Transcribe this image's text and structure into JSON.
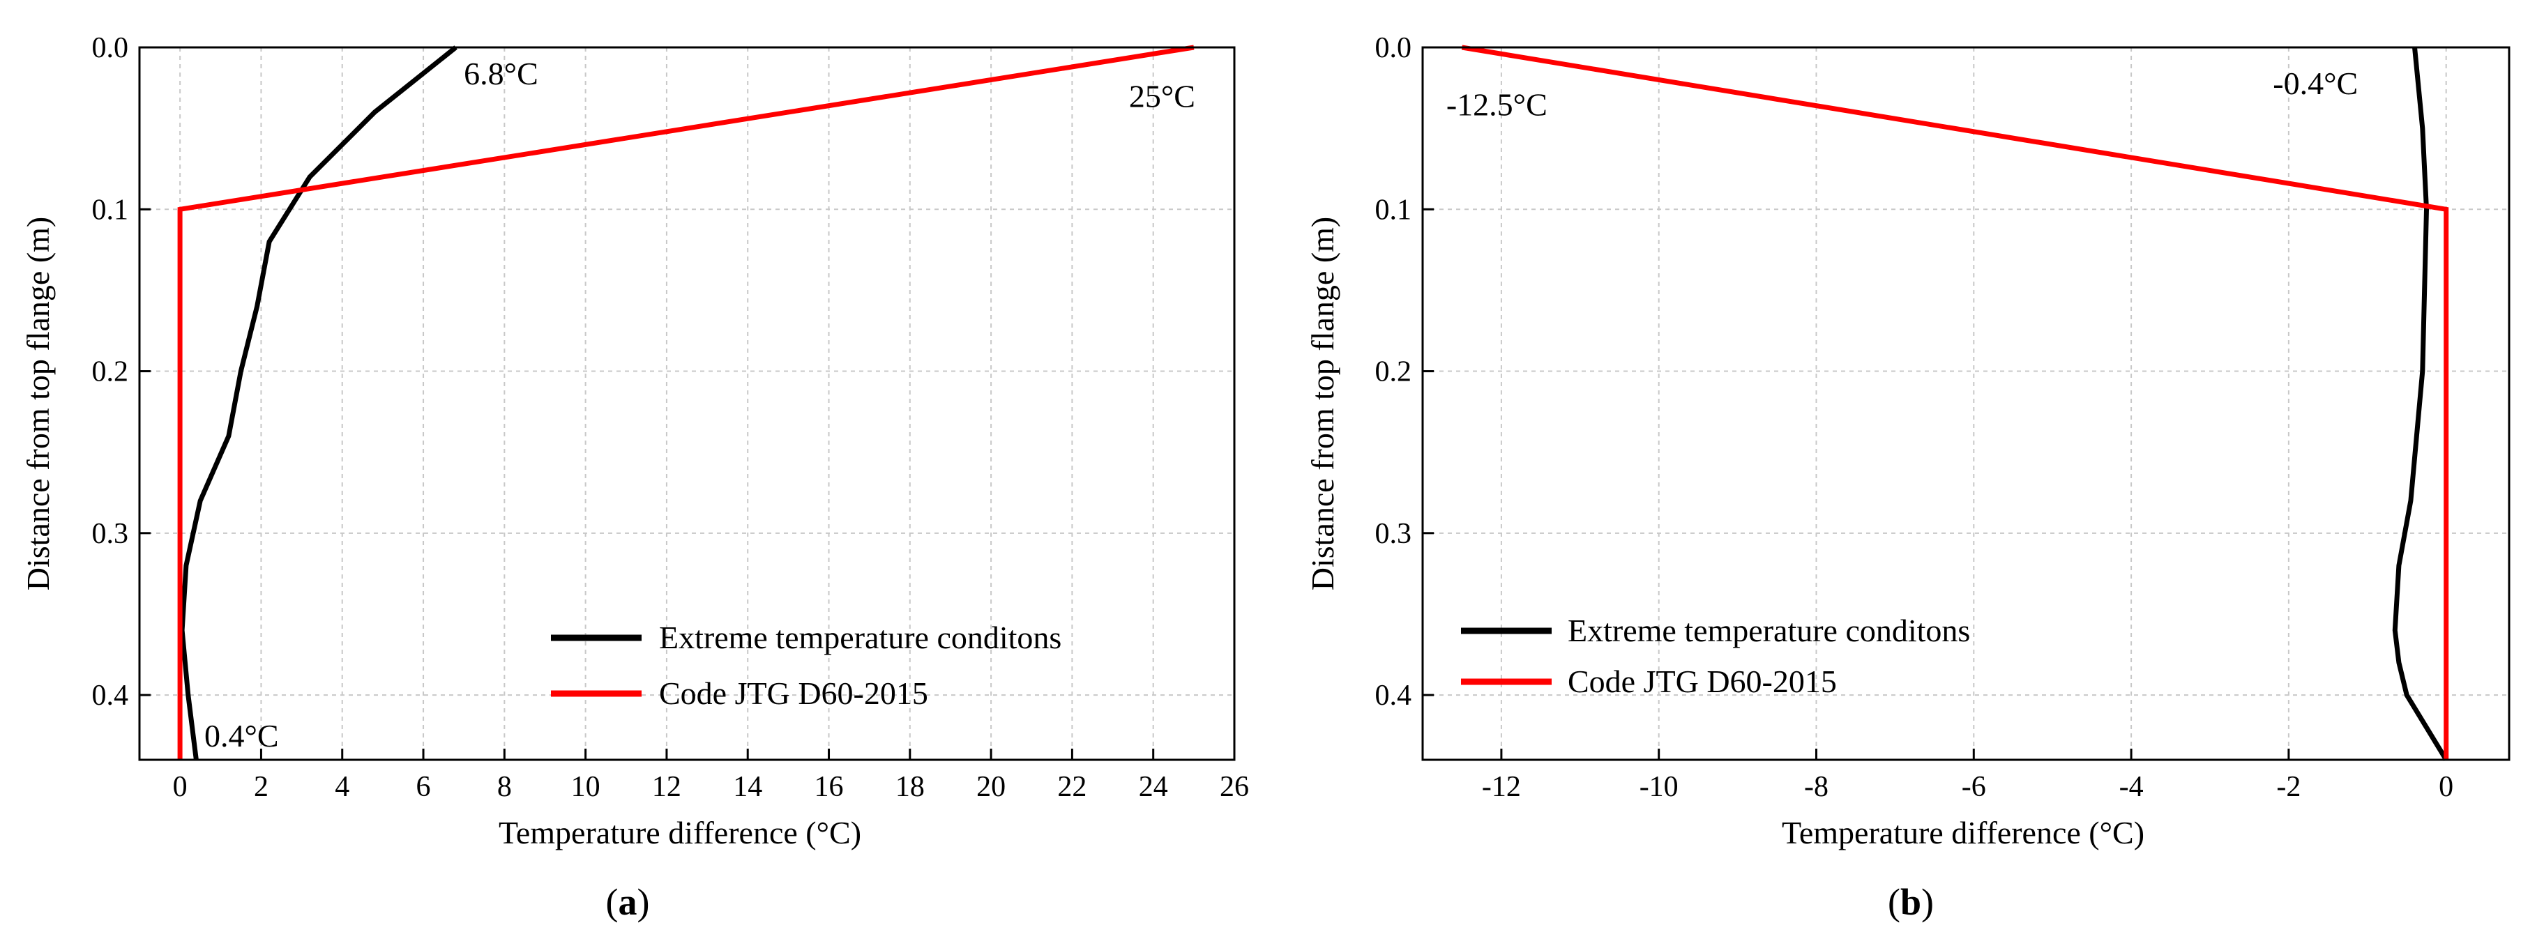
{
  "chart_data": [
    {
      "panel": "a",
      "panel_label": {
        "open": "(",
        "letter": "a",
        "close": ")"
      },
      "type": "line",
      "xlabel": "Temperature difference (°C)",
      "ylabel": "Distance from top flange (m)",
      "xlim": [
        -1,
        26
      ],
      "ylim": [
        0,
        0.44
      ],
      "xticks": [
        0,
        2,
        4,
        6,
        8,
        10,
        12,
        14,
        16,
        18,
        20,
        22,
        24,
        26
      ],
      "xtick_labels": [
        "0",
        "2",
        "4",
        "6",
        "8",
        "10",
        "12",
        "14",
        "16",
        "18",
        "20",
        "22",
        "24",
        "26"
      ],
      "yticks": [
        0.0,
        0.1,
        0.2,
        0.3,
        0.4
      ],
      "ytick_labels": [
        "0.0",
        "0.1",
        "0.2",
        "0.3",
        "0.4"
      ],
      "y_inverted": true,
      "grid": true,
      "legend_position": "bottom-right",
      "series": [
        {
          "name": "Extreme temperature conditons",
          "color": "#000000",
          "points": [
            [
              6.8,
              0.0
            ],
            [
              4.8,
              0.04
            ],
            [
              3.2,
              0.08
            ],
            [
              2.2,
              0.12
            ],
            [
              1.9,
              0.16
            ],
            [
              1.5,
              0.2
            ],
            [
              1.2,
              0.24
            ],
            [
              0.5,
              0.28
            ],
            [
              0.15,
              0.32
            ],
            [
              0.05,
              0.36
            ],
            [
              0.2,
              0.4
            ],
            [
              0.4,
              0.44
            ]
          ]
        },
        {
          "name": "Code JTG D60-2015",
          "color": "#ff0000",
          "points": [
            [
              25,
              0.0
            ],
            [
              0,
              0.1
            ],
            [
              0,
              0.44
            ]
          ]
        }
      ],
      "annotations": [
        {
          "text": "6.8°C",
          "x": 7.0,
          "y": 0.016
        },
        {
          "text": "25°C",
          "x": 23.4,
          "y": 0.03
        },
        {
          "text": "0.4°C",
          "x": 0.6,
          "y": 0.425
        }
      ]
    },
    {
      "panel": "b",
      "panel_label": {
        "open": "(",
        "letter": "b",
        "close": ")"
      },
      "type": "line",
      "xlabel": "Temperature difference (°C)",
      "ylabel": "Distance from top flange (m)",
      "xlim": [
        -13,
        0.8
      ],
      "ylim": [
        0,
        0.44
      ],
      "xticks": [
        -12,
        -10,
        -8,
        -6,
        -4,
        -2,
        0
      ],
      "xtick_labels": [
        "-12",
        "-10",
        "-8",
        "-6",
        "-4",
        "-2",
        "0"
      ],
      "yticks": [
        0.0,
        0.1,
        0.2,
        0.3,
        0.4
      ],
      "ytick_labels": [
        "0.0",
        "0.1",
        "0.2",
        "0.3",
        "0.4"
      ],
      "y_inverted": true,
      "grid": true,
      "legend_position": "bottom-left",
      "series": [
        {
          "name": "Extreme temperature conditons",
          "color": "#000000",
          "points": [
            [
              -0.4,
              0.0
            ],
            [
              -0.3,
              0.05
            ],
            [
              -0.25,
              0.1
            ],
            [
              -0.3,
              0.2
            ],
            [
              -0.45,
              0.28
            ],
            [
              -0.6,
              0.32
            ],
            [
              -0.65,
              0.36
            ],
            [
              -0.6,
              0.38
            ],
            [
              -0.5,
              0.4
            ],
            [
              0,
              0.44
            ]
          ]
        },
        {
          "name": "Code JTG D60-2015",
          "color": "#ff0000",
          "points": [
            [
              -12.5,
              0.0
            ],
            [
              0,
              0.1
            ],
            [
              0,
              0.44
            ]
          ]
        }
      ],
      "annotations": [
        {
          "text": "-12.5°C",
          "x": -12.7,
          "y": 0.035
        },
        {
          "text": "-0.4°C",
          "x": -2.2,
          "y": 0.022
        }
      ]
    }
  ]
}
